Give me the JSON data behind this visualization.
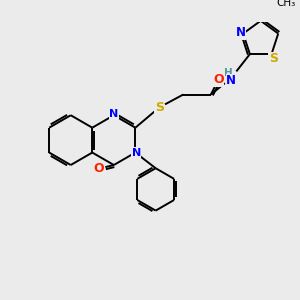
{
  "bg_color": "#ebebeb",
  "atom_colors": {
    "C": "#000000",
    "N": "#0000ff",
    "O": "#ff2200",
    "S": "#ccaa00",
    "H": "#559999"
  },
  "figsize": [
    3.0,
    3.0
  ],
  "dpi": 100
}
